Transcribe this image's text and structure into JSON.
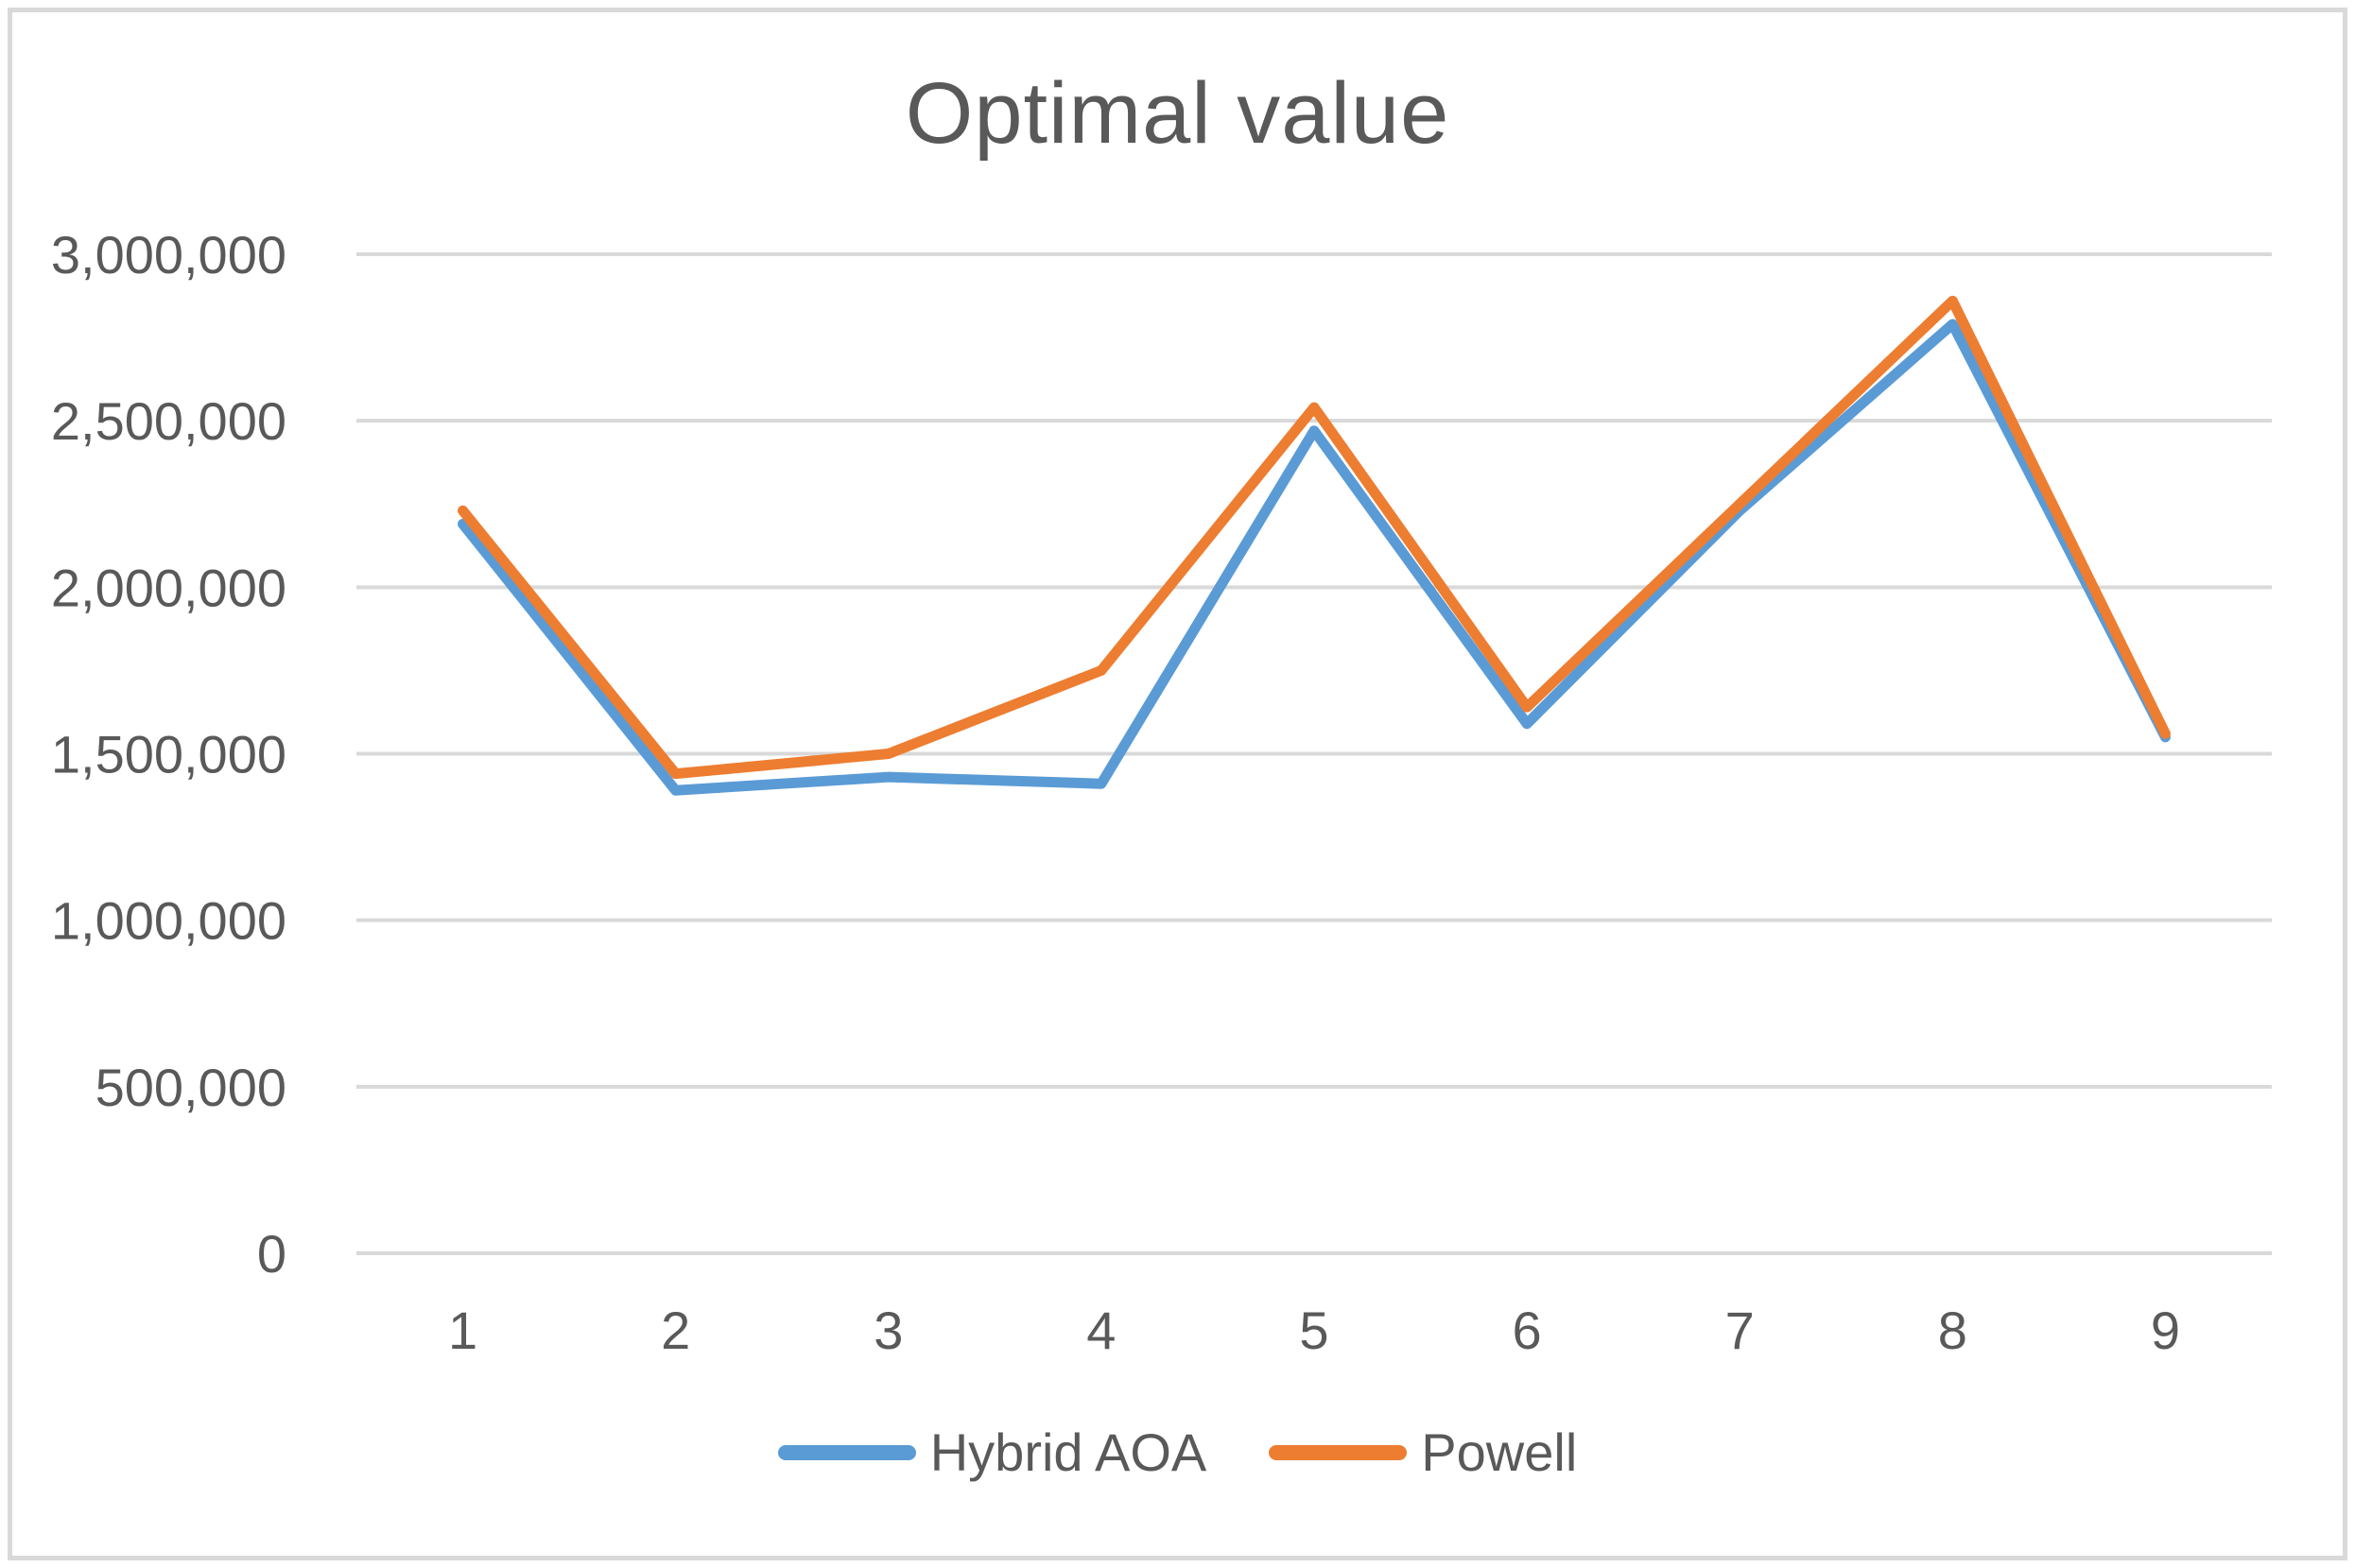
{
  "chart_data": {
    "type": "line",
    "title": "Optimal value",
    "categories": [
      "1",
      "2",
      "3",
      "4",
      "5",
      "6",
      "7",
      "8",
      "9"
    ],
    "series": [
      {
        "name": "Hybrid AOA",
        "color": "#5B9BD5",
        "values": [
          2190000,
          1390000,
          1430000,
          1410000,
          2470000,
          1590000,
          2230000,
          2790000,
          1550000
        ]
      },
      {
        "name": "Powell",
        "color": "#ED7D31",
        "values": [
          2230000,
          1440000,
          1500000,
          1750000,
          2540000,
          1640000,
          2250000,
          2860000,
          1560000
        ]
      }
    ],
    "xlabel": "",
    "ylabel": "",
    "ylim": [
      0,
      3000000
    ],
    "ytick_step": 500000,
    "ytick_labels": [
      "0",
      "500,000",
      "1,000,000",
      "1,500,000",
      "2,000,000",
      "2,500,000",
      "3,000,000"
    ],
    "grid": true,
    "legend_position": "bottom",
    "styles": {
      "grid_color": "#D9D9D9",
      "text_color": "#595959",
      "border_color": "#D9D9D9",
      "background": "#FFFFFF"
    }
  }
}
